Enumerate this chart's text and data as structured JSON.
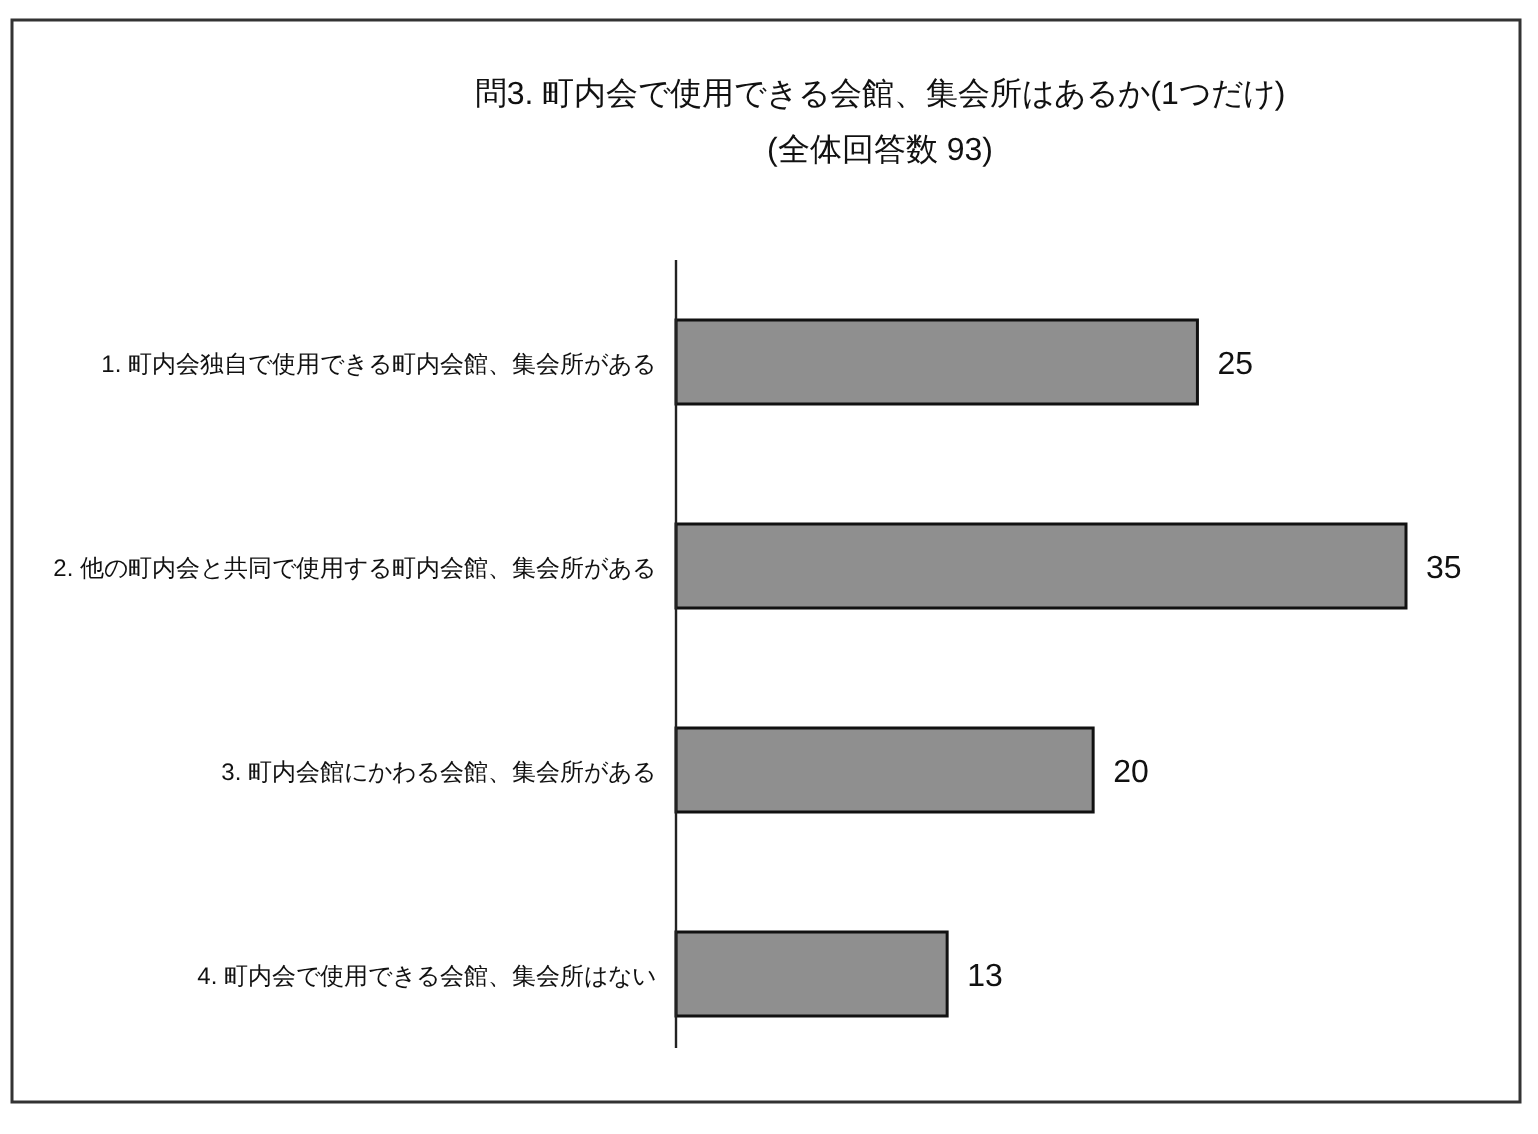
{
  "chart_data": {
    "type": "bar",
    "orientation": "horizontal",
    "title": "問3. 町内会で使用できる会館、集会所はあるか(1つだけ)",
    "subtitle": "(全体回答数 93)",
    "categories": [
      "1. 町内会独自で使用できる町内会館、集会所がある",
      "2. 他の町内会と共同で使用する町内会館、集会所がある",
      "3. 町内会館にかわる会館、集会所がある",
      "4. 町内会で使用できる会館、集会所はない"
    ],
    "values": [
      25,
      35,
      20,
      13
    ],
    "color": "#8f8f8f",
    "data_labels": true
  }
}
